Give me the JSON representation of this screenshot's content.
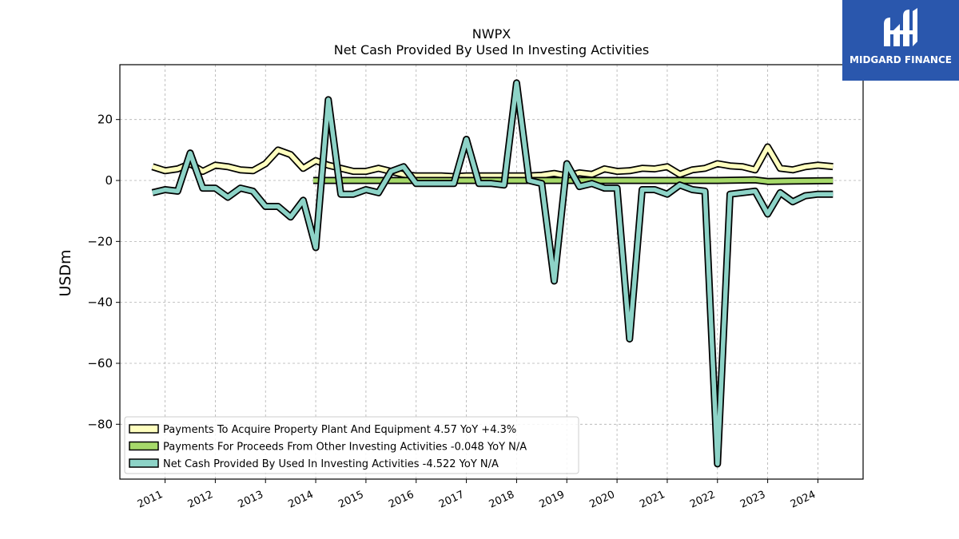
{
  "chart_data": {
    "type": "line",
    "title": "NWPX",
    "subtitle": "Net Cash Provided By Used In Investing Activities",
    "ylabel": "USDm",
    "xlabel": "",
    "xlim": [
      2010.1,
      2024.9
    ],
    "ylim": [
      -98,
      38
    ],
    "y_ticks": [
      20,
      0,
      -20,
      -40,
      -60,
      -80
    ],
    "y_tick_labels": [
      "20",
      "0",
      "−20",
      "−40",
      "−60",
      "−80"
    ],
    "x_ticks": [
      2011,
      2012,
      2013,
      2014,
      2015,
      2016,
      2017,
      2018,
      2019,
      2020,
      2021,
      2022,
      2023,
      2024
    ],
    "x_tick_labels": [
      "2011",
      "2012",
      "2013",
      "2014",
      "2015",
      "2016",
      "2017",
      "2018",
      "2019",
      "2020",
      "2021",
      "2022",
      "2023",
      "2024"
    ],
    "grid": true,
    "legend_position": "lower-left",
    "series": [
      {
        "name": "Payments To Acquire Property Plant And Equipment",
        "legend": "Payments To Acquire Property Plant And Equipment  4.57 YoY +4.3%",
        "color": "#ffffbf",
        "points": [
          [
            2010.75,
            4.5
          ],
          [
            2011.0,
            3.2
          ],
          [
            2011.25,
            3.8
          ],
          [
            2011.5,
            5.5
          ],
          [
            2011.75,
            3.0
          ],
          [
            2012.0,
            5.0
          ],
          [
            2012.25,
            4.5
          ],
          [
            2012.5,
            3.5
          ],
          [
            2012.75,
            3.2
          ],
          [
            2013.0,
            5.5
          ],
          [
            2013.25,
            10.0
          ],
          [
            2013.5,
            8.5
          ],
          [
            2013.75,
            4.0
          ],
          [
            2014.0,
            6.5
          ],
          [
            2014.25,
            5.0
          ],
          [
            2014.5,
            4.0
          ],
          [
            2014.75,
            3.0
          ],
          [
            2015.0,
            3.0
          ],
          [
            2015.25,
            4.0
          ],
          [
            2015.5,
            3.0
          ],
          [
            2015.75,
            2.0
          ],
          [
            2016.0,
            1.5
          ],
          [
            2016.25,
            1.5
          ],
          [
            2016.5,
            1.5
          ],
          [
            2016.75,
            1.3
          ],
          [
            2017.0,
            1.5
          ],
          [
            2017.25,
            1.5
          ],
          [
            2017.5,
            1.5
          ],
          [
            2017.75,
            1.5
          ],
          [
            2018.0,
            1.5
          ],
          [
            2018.25,
            1.5
          ],
          [
            2018.5,
            1.7
          ],
          [
            2018.75,
            2.3
          ],
          [
            2019.0,
            1.5
          ],
          [
            2019.25,
            2.5
          ],
          [
            2019.5,
            2.0
          ],
          [
            2019.75,
            3.8
          ],
          [
            2020.0,
            3.0
          ],
          [
            2020.25,
            3.2
          ],
          [
            2020.5,
            4.0
          ],
          [
            2020.75,
            3.8
          ],
          [
            2021.0,
            4.5
          ],
          [
            2021.25,
            2.0
          ],
          [
            2021.5,
            3.5
          ],
          [
            2021.75,
            4.0
          ],
          [
            2022.0,
            5.5
          ],
          [
            2022.25,
            4.8
          ],
          [
            2022.5,
            4.5
          ],
          [
            2022.75,
            3.5
          ],
          [
            2023.0,
            11.0
          ],
          [
            2023.25,
            4.0
          ],
          [
            2023.5,
            3.5
          ],
          [
            2023.75,
            4.5
          ],
          [
            2024.0,
            5.0
          ],
          [
            2024.3,
            4.57
          ]
        ]
      },
      {
        "name": "Payments For Proceeds From Other Investing Activities",
        "legend": "Payments For Proceeds From Other Investing Activities  -0.048 YoY N/A",
        "color": "#a6d96a",
        "points": [
          [
            2013.95,
            0.0
          ],
          [
            2014.5,
            0.0
          ],
          [
            2015.0,
            0.0
          ],
          [
            2016.0,
            0.0
          ],
          [
            2017.0,
            0.0
          ],
          [
            2018.0,
            0.0
          ],
          [
            2019.0,
            0.0
          ],
          [
            2020.0,
            0.0
          ],
          [
            2021.0,
            0.0
          ],
          [
            2022.0,
            0.0
          ],
          [
            2022.75,
            0.2
          ],
          [
            2023.0,
            -0.3
          ],
          [
            2023.5,
            -0.2
          ],
          [
            2024.0,
            -0.1
          ],
          [
            2024.3,
            -0.048
          ]
        ]
      },
      {
        "name": "Net Cash Provided By Used In Investing Activities",
        "legend": "Net Cash Provided By Used In Investing Activities  -4.522 YoY N/A",
        "color": "#8dd3c7",
        "points": [
          [
            2010.75,
            -4.0
          ],
          [
            2011.0,
            -3.0
          ],
          [
            2011.25,
            -3.5
          ],
          [
            2011.5,
            9.0
          ],
          [
            2011.75,
            -2.5
          ],
          [
            2012.0,
            -2.5
          ],
          [
            2012.25,
            -5.5
          ],
          [
            2012.5,
            -2.5
          ],
          [
            2012.75,
            -3.5
          ],
          [
            2013.0,
            -8.5
          ],
          [
            2013.25,
            -8.5
          ],
          [
            2013.5,
            -12.0
          ],
          [
            2013.75,
            -6.5
          ],
          [
            2014.0,
            -22.0
          ],
          [
            2014.25,
            26.5
          ],
          [
            2014.5,
            -4.5
          ],
          [
            2014.75,
            -4.5
          ],
          [
            2015.0,
            -3.0
          ],
          [
            2015.25,
            -4.0
          ],
          [
            2015.5,
            3.0
          ],
          [
            2015.75,
            4.5
          ],
          [
            2016.0,
            -1.0
          ],
          [
            2016.25,
            -1.0
          ],
          [
            2016.5,
            -1.0
          ],
          [
            2016.75,
            -1.0
          ],
          [
            2017.0,
            13.5
          ],
          [
            2017.25,
            -1.0
          ],
          [
            2017.5,
            -1.0
          ],
          [
            2017.75,
            -1.5
          ],
          [
            2018.0,
            32.0
          ],
          [
            2018.25,
            0.0
          ],
          [
            2018.5,
            -1.0
          ],
          [
            2018.75,
            -33.0
          ],
          [
            2019.0,
            5.5
          ],
          [
            2019.25,
            -2.0
          ],
          [
            2019.5,
            -1.0
          ],
          [
            2019.75,
            -2.5
          ],
          [
            2020.0,
            -2.5
          ],
          [
            2020.25,
            -52.0
          ],
          [
            2020.5,
            -3.0
          ],
          [
            2020.75,
            -3.0
          ],
          [
            2021.0,
            -4.5
          ],
          [
            2021.25,
            -1.5
          ],
          [
            2021.5,
            -3.0
          ],
          [
            2021.75,
            -3.5
          ],
          [
            2022.0,
            -93.0
          ],
          [
            2022.25,
            -4.5
          ],
          [
            2022.5,
            -4.0
          ],
          [
            2022.75,
            -3.5
          ],
          [
            2023.0,
            -11.0
          ],
          [
            2023.25,
            -4.0
          ],
          [
            2023.5,
            -7.0
          ],
          [
            2023.75,
            -5.0
          ],
          [
            2024.0,
            -4.5
          ],
          [
            2024.3,
            -4.522
          ]
        ]
      }
    ]
  },
  "logo": {
    "text": "MIDGARD FINANCE",
    "background": "#2a57ad"
  }
}
